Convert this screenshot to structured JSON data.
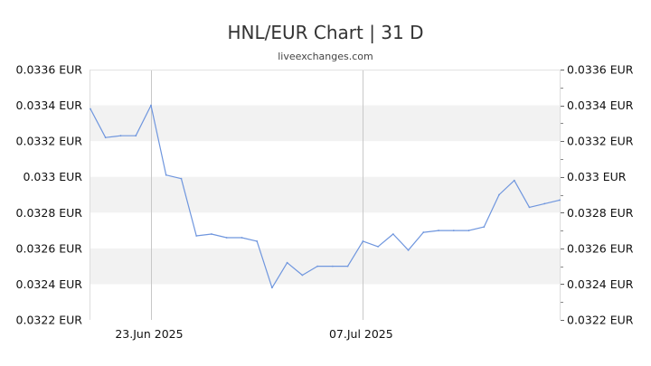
{
  "chart_data": {
    "type": "line",
    "title": "HNL/EUR Chart | 31 D",
    "subtitle": "liveexchanges.com",
    "y_ticks": [
      "0.0322 EUR",
      "0.0324 EUR",
      "0.0326 EUR",
      "0.0328 EUR",
      "0.033 EUR",
      "0.0332 EUR",
      "0.0334 EUR",
      "0.0336 EUR"
    ],
    "y_tick_values": [
      0.0322,
      0.0324,
      0.0326,
      0.0328,
      0.033,
      0.0332,
      0.0334,
      0.0336
    ],
    "x_ticks": [
      {
        "label": "23.Jun 2025",
        "index": 4
      },
      {
        "label": "07.Jul 2025",
        "index": 18
      }
    ],
    "ylim": [
      0.0322,
      0.0336
    ],
    "grid": true,
    "series": [
      {
        "color": "#6f96de",
        "values": [
          0.03338,
          0.03322,
          0.03323,
          0.03323,
          0.0334,
          0.03301,
          0.03299,
          0.03267,
          0.03268,
          0.03266,
          0.03266,
          0.03264,
          0.03238,
          0.03252,
          0.03245,
          0.0325,
          0.0325,
          0.0325,
          0.03264,
          0.03261,
          0.03268,
          0.03259,
          0.03269,
          0.0327,
          0.0327,
          0.0327,
          0.03272,
          0.0329,
          0.03298,
          0.03283,
          0.03285,
          0.03287
        ]
      }
    ]
  }
}
